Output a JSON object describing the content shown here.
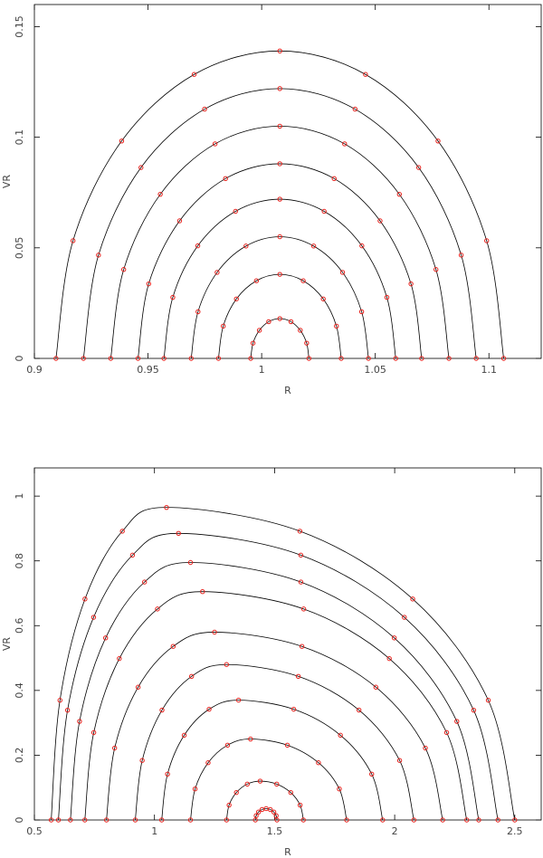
{
  "chart_data": [
    {
      "type": "line",
      "x_label": "R",
      "y_label": "VR",
      "xlim": [
        0.9,
        1.123
      ],
      "ylim": [
        0,
        0.16
      ],
      "xticks": [
        0.9,
        0.95,
        1,
        1.05,
        1.1
      ],
      "yticks": [
        0,
        0.05,
        0.1,
        0.15
      ],
      "line_color": "#000000",
      "marker_color": "#e8211c",
      "series": [
        {
          "x": [
            0.9095,
            0.917,
            0.9384,
            0.9703,
            1.008,
            1.0457,
            1.0776,
            1.099,
            1.1065
          ],
          "values": [
            0,
            0.0532,
            0.0983,
            0.1284,
            0.139,
            0.1284,
            0.0983,
            0.0532,
            0
          ]
        },
        {
          "x": [
            0.9216,
            0.9282,
            0.9469,
            0.9749,
            1.008,
            1.0411,
            1.0691,
            1.0878,
            1.0944
          ],
          "values": [
            0,
            0.0467,
            0.0863,
            0.1127,
            0.122,
            0.1127,
            0.0863,
            0.0467,
            0
          ]
        },
        {
          "x": [
            0.9336,
            0.9393,
            0.9554,
            0.9795,
            1.008,
            1.0365,
            1.0606,
            1.0767,
            1.0824
          ],
          "values": [
            0,
            0.0402,
            0.0742,
            0.097,
            0.105,
            0.097,
            0.0742,
            0.0402,
            0
          ]
        },
        {
          "x": [
            0.9456,
            0.9503,
            0.9639,
            0.9841,
            1.008,
            1.0319,
            1.0521,
            1.0657,
            1.0704
          ],
          "values": [
            0,
            0.0337,
            0.0622,
            0.0813,
            0.088,
            0.0813,
            0.0622,
            0.0337,
            0
          ]
        },
        {
          "x": [
            0.957,
            0.9609,
            0.9719,
            0.9885,
            1.008,
            1.0275,
            1.0441,
            1.0551,
            1.059
          ],
          "values": [
            0,
            0.0276,
            0.0509,
            0.0665,
            0.072,
            0.0665,
            0.0509,
            0.0276,
            0
          ]
        },
        {
          "x": [
            0.969,
            0.972,
            0.9804,
            0.9931,
            1.008,
            1.0229,
            1.0356,
            1.044,
            1.047
          ],
          "values": [
            0,
            0.0211,
            0.0389,
            0.0508,
            0.055,
            0.0508,
            0.0389,
            0.0211,
            0
          ]
        },
        {
          "x": [
            0.981,
            0.9831,
            0.9889,
            0.9977,
            1.008,
            1.0183,
            1.0271,
            1.0329,
            1.035
          ],
          "values": [
            0,
            0.0146,
            0.0269,
            0.0351,
            0.038,
            0.0351,
            0.0269,
            0.0146,
            0
          ]
        },
        {
          "x": [
            0.9952,
            0.9962,
            0.999,
            1.0031,
            1.008,
            1.0129,
            1.017,
            1.0198,
            1.0208
          ],
          "values": [
            0,
            0.0069,
            0.0127,
            0.0166,
            0.018,
            0.0166,
            0.0127,
            0.0069,
            0
          ]
        }
      ]
    },
    {
      "type": "line",
      "x_label": "R",
      "y_label": "VR",
      "xlim": [
        0.5,
        2.61
      ],
      "ylim": [
        0,
        1.087
      ],
      "xticks": [
        0.5,
        1,
        1.5,
        2,
        2.5
      ],
      "yticks": [
        0,
        0.2,
        0.4,
        0.6,
        0.8,
        1
      ],
      "line_color": "#000000",
      "marker_color": "#e8211c",
      "series": [
        {
          "x": [
            0.57,
            0.6065,
            0.7106,
            0.8662,
            1.05,
            1.6054,
            2.0752,
            2.3898,
            2.5
          ],
          "values": [
            0,
            0.3696,
            0.6823,
            0.8917,
            0.965,
            0.8917,
            0.6823,
            0.3696,
            0
          ]
        },
        {
          "x": [
            0.6,
            0.638,
            0.7465,
            0.9085,
            1.1,
            1.6094,
            2.0403,
            2.3289,
            2.43
          ],
          "values": [
            0,
            0.339,
            0.6257,
            0.8177,
            0.885,
            0.8177,
            0.6257,
            0.339,
            0
          ]
        },
        {
          "x": [
            0.65,
            0.688,
            0.7965,
            0.9585,
            1.15,
            1.6096,
            1.9984,
            2.2588,
            2.35
          ],
          "values": [
            0,
            0.3045,
            0.5621,
            0.7346,
            0.795,
            0.7346,
            0.5621,
            0.3045,
            0
          ]
        },
        {
          "x": [
            0.71,
            0.7472,
            0.8536,
            1.0123,
            1.2,
            1.6213,
            1.9777,
            2.2164,
            2.3
          ],
          "values": [
            0,
            0.27,
            0.4984,
            0.6514,
            0.705,
            0.6514,
            0.4984,
            0.27,
            0
          ]
        },
        {
          "x": [
            0.8,
            0.8342,
            0.9319,
            1.0777,
            1.25,
            1.6139,
            1.9217,
            2.1278,
            2.2
          ],
          "values": [
            0,
            0.2221,
            0.4101,
            0.5359,
            0.58,
            0.5359,
            0.4101,
            0.2221,
            0
          ]
        },
        {
          "x": [
            0.92,
            0.9489,
            1.0313,
            1.1545,
            1.3,
            1.5987,
            1.8515,
            2.0207,
            2.08
          ],
          "values": [
            0,
            0.1838,
            0.3394,
            0.4435,
            0.48,
            0.4435,
            0.3394,
            0.1838,
            0
          ]
        },
        {
          "x": [
            1.03,
            1.0543,
            1.1238,
            1.2274,
            1.35,
            1.5798,
            1.7742,
            1.9044,
            1.95
          ],
          "values": [
            0,
            0.1417,
            0.2616,
            0.3419,
            0.37,
            0.3419,
            0.2616,
            0.1417,
            0
          ]
        },
        {
          "x": [
            1.15,
            1.169,
            1.2233,
            1.3043,
            1.4,
            1.5532,
            1.6828,
            1.7696,
            1.8
          ],
          "values": [
            0,
            0.0958,
            0.1768,
            0.231,
            0.25,
            0.231,
            0.1768,
            0.0958,
            0
          ]
        },
        {
          "x": [
            1.3,
            1.3106,
            1.341,
            1.3864,
            1.44,
            1.5089,
            1.5673,
            1.6063,
            1.62
          ],
          "values": [
            0,
            0.046,
            0.0848,
            0.1109,
            0.12,
            0.1109,
            0.0848,
            0.046,
            0
          ]
        },
        {
          "x": [
            1.42,
            1.4234,
            1.4332,
            1.4478,
            1.465,
            1.4822,
            1.4968,
            1.5066,
            1.51
          ],
          "values": [
            0,
            0.0134,
            0.0247,
            0.0323,
            0.035,
            0.0323,
            0.0247,
            0.0134,
            0
          ]
        }
      ]
    }
  ]
}
